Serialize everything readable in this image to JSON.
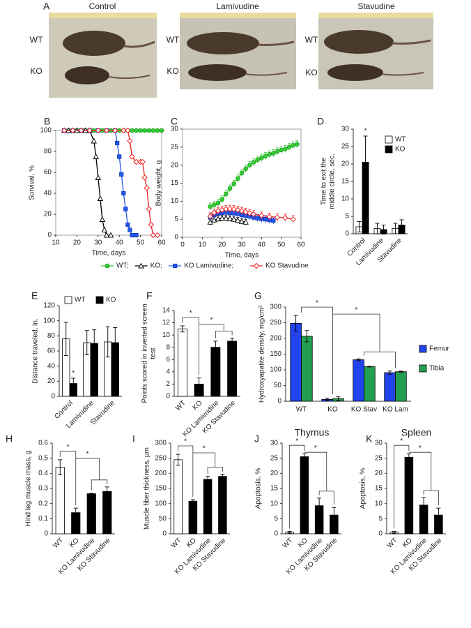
{
  "panel_a": {
    "panel": "A",
    "columns": [
      "Control",
      "Lamivudine",
      "Stavudine"
    ],
    "rows": [
      "WT",
      "KO"
    ]
  },
  "chart_data": [
    {
      "type": "line",
      "panel": "B",
      "xlabel": "Time, days",
      "ylabel": "Survival, %",
      "xlim": [
        10,
        60
      ],
      "xticks": [
        10,
        20,
        30,
        40,
        50,
        60
      ],
      "ylim": [
        0,
        100
      ],
      "yticks": [
        0,
        20,
        40,
        60,
        80,
        100
      ],
      "legend": "below",
      "series": [
        {
          "name": "WT;",
          "color": "#33cc33",
          "marker": "circle",
          "x": [
            14,
            16,
            18,
            20,
            22,
            24,
            26,
            28,
            30,
            32,
            34,
            36,
            38,
            40,
            42,
            44,
            46,
            48,
            50,
            52,
            54,
            56,
            58,
            60
          ],
          "values": [
            100,
            100,
            100,
            100,
            100,
            100,
            100,
            100,
            100,
            100,
            100,
            100,
            100,
            100,
            100,
            100,
            100,
            100,
            100,
            100,
            100,
            100,
            100,
            100
          ]
        },
        {
          "name": "KO;",
          "color": "#000000",
          "marker": "triangle",
          "x": [
            14,
            16,
            18,
            20,
            22,
            24,
            26,
            28,
            29,
            30,
            31,
            32,
            33,
            34,
            36
          ],
          "values": [
            100,
            100,
            100,
            100,
            100,
            100,
            100,
            90,
            75,
            55,
            35,
            15,
            5,
            0,
            0
          ]
        },
        {
          "name": "KO Lamivudine;",
          "color": "#2255ee",
          "marker": "square",
          "x": [
            14,
            18,
            22,
            26,
            30,
            34,
            38,
            39,
            40,
            41,
            42,
            43,
            44,
            45,
            46,
            48
          ],
          "values": [
            100,
            100,
            100,
            100,
            100,
            100,
            100,
            88,
            75,
            58,
            40,
            25,
            10,
            5,
            0,
            0
          ]
        },
        {
          "name": "KO Stavudine",
          "color": "#ee2222",
          "marker": "diamond",
          "x": [
            14,
            18,
            22,
            26,
            30,
            34,
            38,
            42,
            44,
            45,
            46,
            48,
            50,
            51,
            52,
            53,
            54,
            55,
            56,
            58
          ],
          "values": [
            100,
            100,
            100,
            100,
            100,
            100,
            100,
            100,
            100,
            90,
            75,
            70,
            70,
            70,
            55,
            45,
            25,
            10,
            0,
            0
          ]
        }
      ]
    },
    {
      "type": "line",
      "panel": "C",
      "xlabel": "Time, days",
      "ylabel": "Body weight, g",
      "xlim": [
        0,
        60
      ],
      "xticks": [
        0,
        10,
        20,
        30,
        40,
        50,
        60
      ],
      "ylim": [
        0,
        30
      ],
      "yticks": [
        0,
        5,
        10,
        15,
        20,
        25,
        30
      ],
      "series": [
        {
          "color": "#33cc33",
          "marker": "circle",
          "x": [
            14,
            16,
            18,
            20,
            22,
            24,
            26,
            28,
            30,
            32,
            34,
            36,
            38,
            40,
            42,
            44,
            46,
            48,
            50,
            52,
            54,
            56,
            58
          ],
          "values": [
            8.5,
            9,
            9.5,
            10.5,
            12,
            13.5,
            14.8,
            16.3,
            17.8,
            19,
            20,
            20.8,
            21.5,
            22,
            22.5,
            23,
            23.3,
            23.8,
            24.2,
            24.5,
            25,
            25.5,
            25.8
          ],
          "errors": [
            1,
            1,
            1,
            1,
            1,
            1,
            1,
            1,
            1,
            1,
            1,
            1,
            1,
            1,
            1,
            1,
            1,
            1,
            1,
            1,
            1,
            1,
            1
          ]
        },
        {
          "color": "#000000",
          "marker": "triangle",
          "x": [
            14,
            16,
            18,
            20,
            22,
            24,
            26,
            28,
            30,
            32
          ],
          "values": [
            4.2,
            4.8,
            5.1,
            5.3,
            5.3,
            5.2,
            5,
            4.7,
            4.4,
            4.2
          ],
          "errors": [
            0.8,
            0.8,
            0.8,
            0.8,
            0.8,
            0.8,
            0.8,
            0.8,
            0.8,
            0.8
          ]
        },
        {
          "color": "#2255ee",
          "marker": "square",
          "x": [
            14,
            16,
            18,
            20,
            22,
            24,
            26,
            28,
            30,
            32,
            34,
            36,
            38,
            40,
            42,
            44,
            46
          ],
          "values": [
            5.5,
            6.2,
            6.6,
            6.8,
            6.9,
            6.8,
            6.7,
            6.5,
            6.2,
            6,
            5.8,
            5.5,
            5.3,
            5.1,
            5,
            4.8,
            4.6
          ],
          "errors": [
            1,
            1,
            1,
            1,
            1,
            1,
            1,
            1,
            1,
            1,
            1,
            1,
            1,
            1,
            1,
            1,
            1
          ]
        },
        {
          "color": "#ee2222",
          "marker": "diamond",
          "x": [
            14,
            16,
            18,
            20,
            22,
            24,
            26,
            28,
            30,
            32,
            34,
            36,
            40,
            44,
            48,
            52,
            56
          ],
          "values": [
            5.8,
            6.8,
            7.3,
            7.6,
            7.8,
            7.9,
            7.8,
            7.6,
            7.3,
            7,
            6.7,
            6.4,
            6,
            5.7,
            5.5,
            5.4,
            5
          ],
          "errors": [
            1,
            1,
            1,
            1,
            1,
            1,
            1,
            1,
            1,
            1,
            1,
            1,
            1,
            1,
            1,
            1,
            1
          ]
        }
      ]
    },
    {
      "type": "bar",
      "panel": "D",
      "ylabel": [
        "Time to exit the",
        "middle circle, sec."
      ],
      "ylim": [
        0,
        30
      ],
      "yticks": [
        0,
        5,
        10,
        15,
        20,
        25,
        30
      ],
      "legend": "upper right",
      "annotations": [
        "*"
      ],
      "categories": [
        "Control",
        "Lamivudine",
        "Stavudine"
      ],
      "series": [
        {
          "name": "WT",
          "color": "#ffffff",
          "values": [
            2,
            1.5,
            1.5
          ],
          "errors": [
            1.5,
            1.5,
            1.5
          ]
        },
        {
          "name": "KO",
          "color": "#000000",
          "values": [
            20.5,
            1.2,
            2.5
          ],
          "errors": [
            7.5,
            1.3,
            1.5
          ]
        }
      ]
    },
    {
      "type": "bar",
      "panel": "E",
      "ylabel": "Distance traveled, in.",
      "ylim": [
        0,
        120
      ],
      "yticks": [
        0,
        20,
        40,
        60,
        80,
        100,
        120
      ],
      "legend": "top",
      "annotations": [
        "*"
      ],
      "categories": [
        "Control",
        "Lamivudine",
        "Stavudine"
      ],
      "series": [
        {
          "name": "WT",
          "color": "#ffffff",
          "values": [
            76,
            71,
            72
          ],
          "errors": [
            22,
            16,
            20
          ]
        },
        {
          "name": "KO",
          "color": "#000000",
          "values": [
            17,
            70,
            71
          ],
          "errors": [
            7,
            18,
            20
          ]
        }
      ]
    },
    {
      "type": "bar",
      "panel": "F",
      "ylabel": [
        "Points scored in inverted screen",
        "test"
      ],
      "ylim": [
        0,
        14
      ],
      "yticks": [
        0,
        2,
        4,
        6,
        8,
        10,
        12,
        14
      ],
      "annotations": [
        "*",
        "*"
      ],
      "categories": [
        "WT",
        "KO",
        "KO Lamivudine",
        "KO Stavudine"
      ],
      "values": [
        11,
        2,
        8,
        9
      ],
      "errors": [
        0.5,
        1,
        1,
        0.5
      ],
      "colors": [
        "#ffffff",
        "#000000",
        "#000000",
        "#000000"
      ]
    },
    {
      "type": "bar",
      "panel": "G",
      "ylabel": "Hydroxyapatite density, mg/cm³",
      "ylim": [
        0,
        300
      ],
      "yticks": [
        0,
        50,
        100,
        150,
        200,
        250,
        300
      ],
      "legend": "right",
      "annotations": [
        "*",
        "*"
      ],
      "categories": [
        "WT",
        "KO",
        "KO Stav",
        "KO Lam"
      ],
      "series": [
        {
          "name": "Femur",
          "color": "#2244ee",
          "values": [
            248,
            6,
            132,
            91
          ],
          "errors": [
            25,
            4,
            3,
            5
          ]
        },
        {
          "name": "Tibia",
          "color": "#22a050",
          "values": [
            207,
            8,
            110,
            94
          ],
          "errors": [
            18,
            6,
            1,
            2
          ]
        }
      ]
    },
    {
      "type": "bar",
      "panel": "H",
      "ylabel": "Hind leg muscle mass, g",
      "ylim": [
        0,
        0.6
      ],
      "yticks": [
        0,
        0.1,
        0.2,
        0.3,
        0.4,
        0.5,
        0.6
      ],
      "annotations": [
        "*",
        "*"
      ],
      "categories": [
        "WT",
        "KO",
        "KO Lamivudine",
        "KO Stavudine"
      ],
      "values": [
        0.44,
        0.14,
        0.265,
        0.28
      ],
      "errors": [
        0.05,
        0.03,
        0.003,
        0.03
      ],
      "colors": [
        "#ffffff",
        "#000000",
        "#000000",
        "#000000"
      ]
    },
    {
      "type": "bar",
      "panel": "I",
      "ylabel": "Muscle fiber thickness, µm",
      "ylim": [
        0,
        300
      ],
      "yticks": [
        0,
        50,
        100,
        150,
        200,
        250,
        300
      ],
      "annotations": [
        "*",
        "*"
      ],
      "categories": [
        "WT",
        "KO",
        "KO Lamivudine",
        "KO Stavudine"
      ],
      "values": [
        245,
        108,
        180,
        190
      ],
      "errors": [
        18,
        5,
        10,
        7
      ],
      "colors": [
        "#ffffff",
        "#000000",
        "#000000",
        "#000000"
      ]
    },
    {
      "type": "bar",
      "panel": "J",
      "title": "Thymus",
      "ylabel": "Apoptosis, %",
      "ylim": [
        0,
        30
      ],
      "yticks": [
        0,
        5,
        10,
        15,
        20,
        25,
        30
      ],
      "annotations": [
        "*",
        "*"
      ],
      "categories": [
        "WT",
        "KO",
        "KO Lamivudine",
        "KO Stavudine"
      ],
      "values": [
        0.5,
        25.5,
        9.3,
        6.2
      ],
      "errors": [
        0.3,
        1,
        2.5,
        2.5
      ],
      "colors": [
        "#ffffff",
        "#000000",
        "#000000",
        "#000000"
      ]
    },
    {
      "type": "bar",
      "panel": "K",
      "title": "Spleen",
      "ylabel": "Apoptosis, %",
      "ylim": [
        0,
        30
      ],
      "yticks": [
        0,
        5,
        10,
        15,
        20,
        25,
        30
      ],
      "annotations": [
        "*",
        "*"
      ],
      "categories": [
        "WT",
        "KO",
        "KO Lamivudine",
        "KO Stavudine"
      ],
      "values": [
        0.5,
        25.3,
        9.5,
        6.2
      ],
      "errors": [
        0.3,
        1.2,
        2.5,
        2.3
      ],
      "colors": [
        "#ffffff",
        "#000000",
        "#000000",
        "#000000"
      ]
    }
  ]
}
